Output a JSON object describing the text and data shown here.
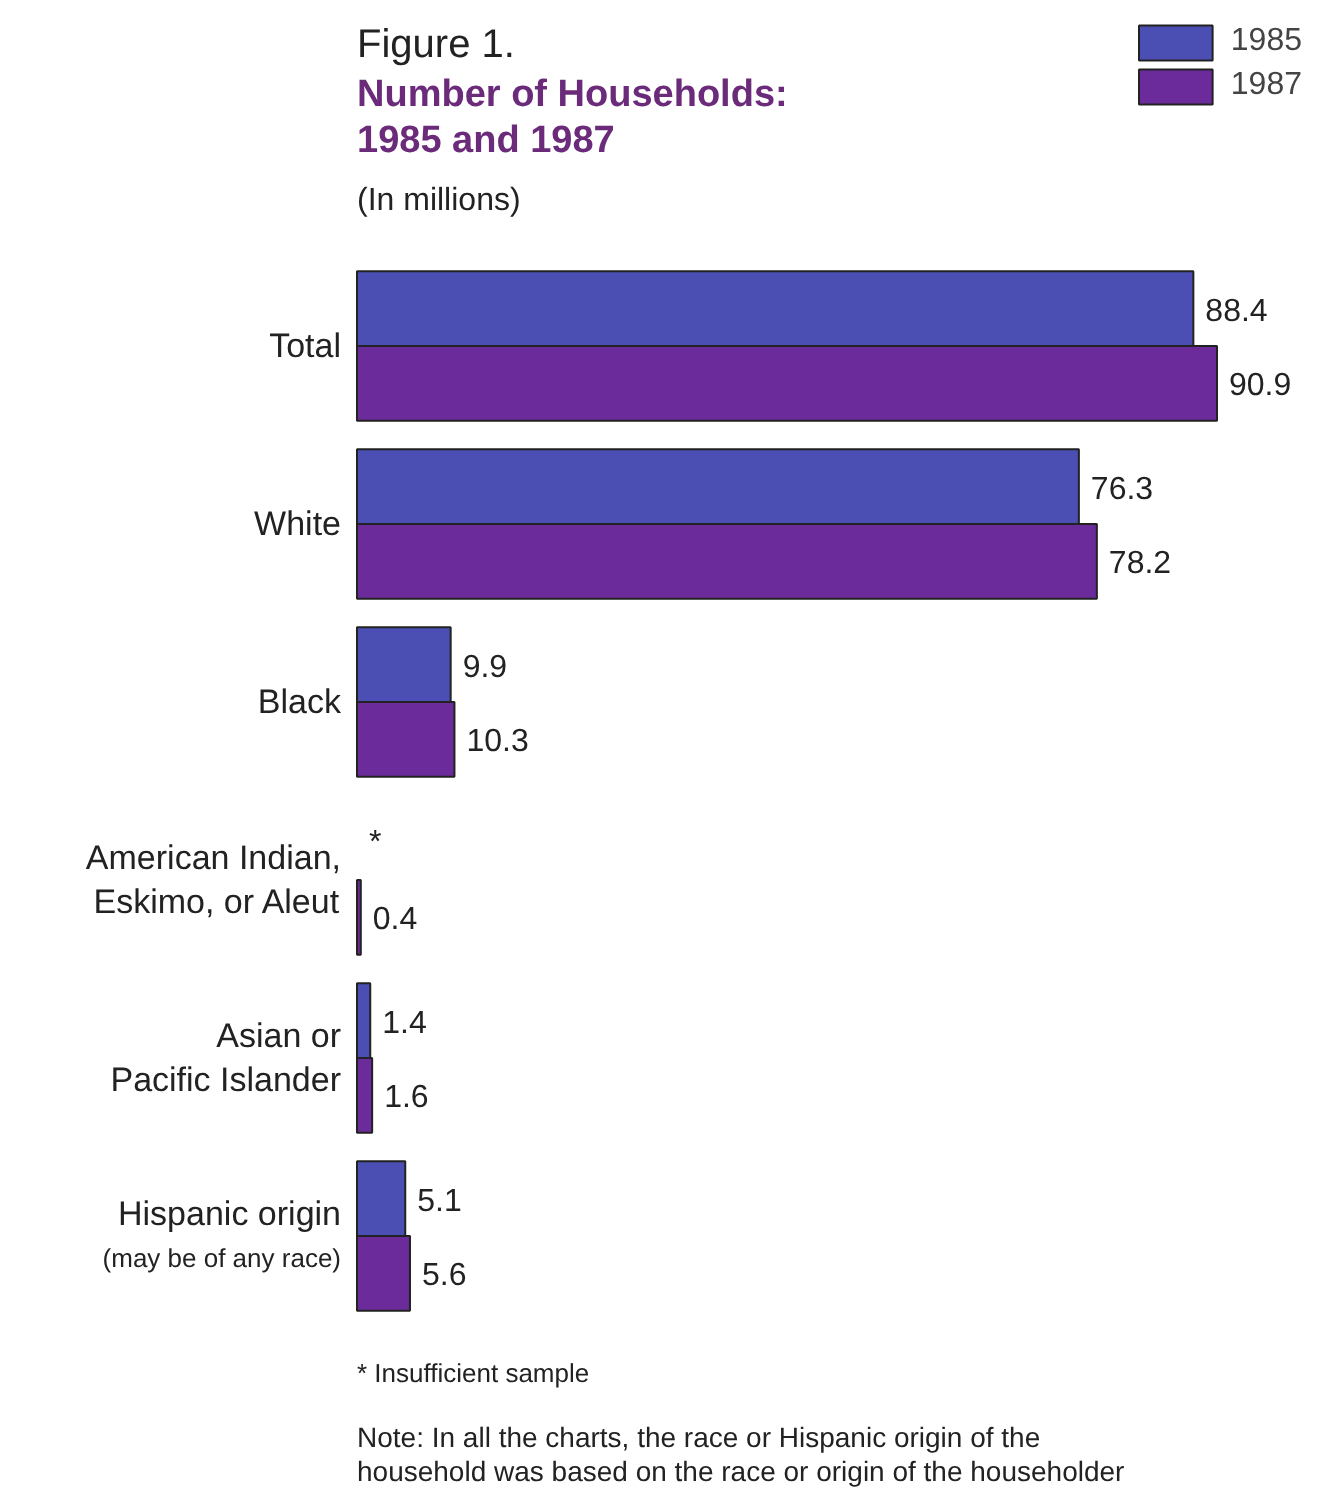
{
  "chart_data": {
    "type": "bar",
    "orientation": "horizontal",
    "title": "Number of Households:\n1985 and 1987",
    "subtitle": "(In millions)",
    "categories": [
      "Total",
      "White",
      "Black",
      "American Indian,\nEskimo, or Aleut",
      "Asian or\nPacific Islander",
      "Hispanic origin\n(may be of any race)"
    ],
    "series": [
      {
        "name": "1985",
        "color": "#4b4fb3",
        "values": [
          88.4,
          76.3,
          9.9,
          null,
          1.4,
          5.1
        ],
        "value_labels": [
          "88.4",
          "76.3",
          "9.9",
          "*",
          "1.4",
          "5.1"
        ]
      },
      {
        "name": "1987",
        "color": "#6b2b9a",
        "values": [
          90.9,
          78.2,
          10.3,
          0.4,
          1.6,
          5.6
        ],
        "value_labels": [
          "90.9",
          "78.2",
          "10.3",
          "0.4",
          "1.6",
          "5.6"
        ]
      }
    ],
    "legend": "top right",
    "grid": false,
    "annotations": [
      "Figure 1.",
      "* Insufficient sample",
      "Note:  In all the charts, the race or Hispanic origin of the household was based on the race or origin of the householder"
    ]
  }
}
